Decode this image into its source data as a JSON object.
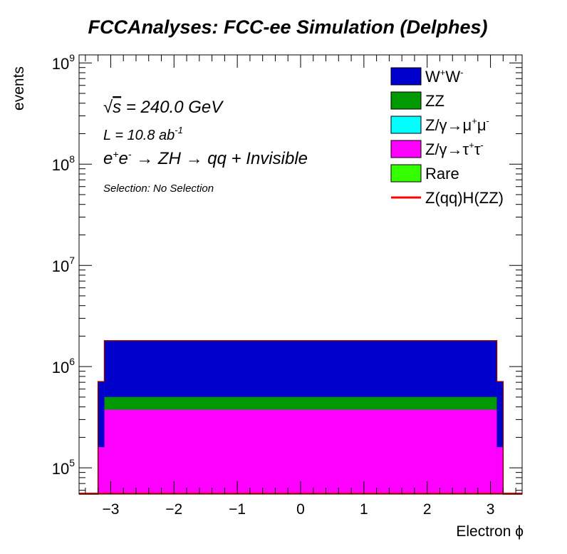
{
  "chart_data": {
    "type": "bar",
    "title": "FCCAnalyses: FCC-ee Simulation (Delphes)",
    "xlabel": "Electron ϕ",
    "ylabel": "events",
    "xlim": [
      -3.5,
      3.5
    ],
    "ylim": [
      55000,
      1200000000
    ],
    "yscale": "log",
    "x_ticks": [
      -3,
      -2,
      -1,
      0,
      1,
      2,
      3
    ],
    "x_tick_labels": [
      "−3",
      "−2",
      "−1",
      "0",
      "1",
      "2",
      "3"
    ],
    "y_ticks": [
      {
        "value": 100000,
        "base": "10",
        "exp": "5"
      },
      {
        "value": 1000000,
        "base": "10",
        "exp": "6"
      },
      {
        "value": 10000000,
        "base": "10",
        "exp": "7"
      },
      {
        "value": 100000000,
        "base": "10",
        "exp": "8"
      },
      {
        "value": 1000000000,
        "base": "10",
        "exp": "9"
      }
    ],
    "stacked": true,
    "bins": [
      {
        "lo": -3.5,
        "hi": -3.2,
        "rare": 0,
        "tautau": 0,
        "mumu": 0,
        "zz": 0,
        "ww": 0
      },
      {
        "lo": -3.2,
        "hi": -3.1,
        "rare": 0,
        "tautau": 160000,
        "mumu": 0,
        "zz": 0,
        "ww": 550000
      },
      {
        "lo": -3.1,
        "hi": 3.1,
        "rare": 0,
        "tautau": 375000,
        "mumu": 0,
        "zz": 126000,
        "ww": 1300000
      },
      {
        "lo": 3.1,
        "hi": 3.2,
        "rare": 0,
        "tautau": 160000,
        "mumu": 0,
        "zz": 0,
        "ww": 550000
      },
      {
        "lo": 3.2,
        "hi": 3.5,
        "rare": 0,
        "tautau": 0,
        "mumu": 0,
        "zz": 0,
        "ww": 0
      }
    ],
    "signal_line": {
      "name": "Z(qq)H(ZZ)",
      "color": "#ff0000",
      "value": 0
    },
    "legend": {
      "position": "top-right",
      "entries": [
        {
          "key": "ww",
          "label_parts": [
            {
              "t": "W"
            },
            {
              "t": "+",
              "sup": true
            },
            {
              "t": "W"
            },
            {
              "t": "-",
              "sup": true
            }
          ],
          "color": "#0000cc",
          "kind": "box"
        },
        {
          "key": "zz",
          "label_parts": [
            {
              "t": "ZZ"
            }
          ],
          "color": "#009900",
          "kind": "box"
        },
        {
          "key": "mumu",
          "label_parts": [
            {
              "t": "Z/γ→μ"
            },
            {
              "t": "+",
              "sup": true
            },
            {
              "t": "μ"
            },
            {
              "t": "-",
              "sup": true
            }
          ],
          "color": "#00ffff",
          "kind": "box"
        },
        {
          "key": "tautau",
          "label_parts": [
            {
              "t": "Z/γ→τ"
            },
            {
              "t": "+",
              "sup": true
            },
            {
              "t": "τ"
            },
            {
              "t": "-",
              "sup": true
            }
          ],
          "color": "#ff00ff",
          "kind": "box"
        },
        {
          "key": "rare",
          "label_parts": [
            {
              "t": "Rare"
            }
          ],
          "color": "#33ff00",
          "kind": "box"
        },
        {
          "key": "signal",
          "label_parts": [
            {
              "t": "Z(qq)H(ZZ)"
            }
          ],
          "color": "#ff0000",
          "kind": "line"
        }
      ]
    },
    "annotations": {
      "sqrt_symbol": "√",
      "sqrt_var": "s",
      "sqrt_rest": " = 240.0 GeV",
      "lumi_main": "L = 10.8 ab",
      "lumi_sup": "-1",
      "process_parts": [
        {
          "t": "e"
        },
        {
          "t": "+",
          "sup": true
        },
        {
          "t": "e"
        },
        {
          "t": "-",
          "sup": true
        },
        {
          "t": " → ZH → qq + Invisible"
        }
      ],
      "selection": "Selection: No Selection"
    }
  }
}
